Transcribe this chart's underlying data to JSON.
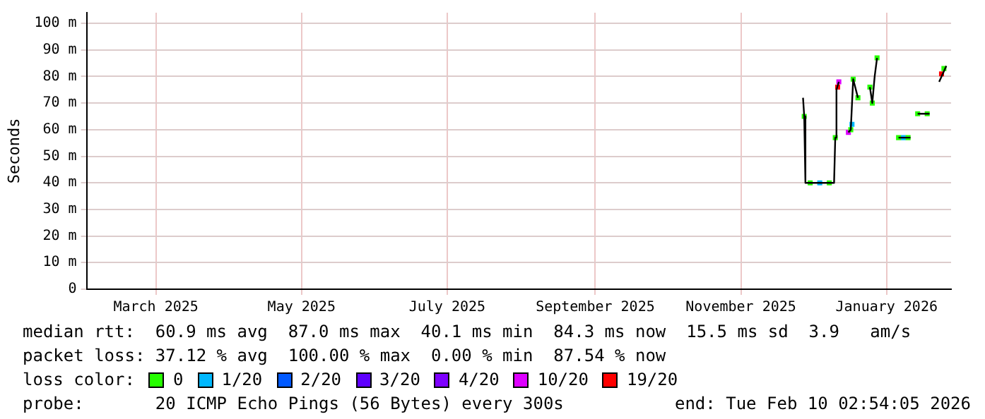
{
  "chart_data": {
    "type": "line",
    "ylabel": "Seconds",
    "legend_title": "loss color:",
    "xlim": [
      "2025-02-14",
      "2026-02-11"
    ],
    "xticks": [
      {
        "value": "2025-03-15",
        "label": "March 2025"
      },
      {
        "value": "2025-05-15",
        "label": "May 2025"
      },
      {
        "value": "2025-07-15",
        "label": "July 2025"
      },
      {
        "value": "2025-09-15",
        "label": "September 2025"
      },
      {
        "value": "2025-11-15",
        "label": "November 2025"
      },
      {
        "value": "2026-01-15",
        "label": "January 2026"
      }
    ],
    "ylim": [
      0,
      104
    ],
    "yticks": [
      0,
      {
        "value": 10,
        "label": "10 m"
      },
      {
        "value": 20,
        "label": "20 m"
      },
      {
        "value": 30,
        "label": "30 m"
      },
      {
        "value": 40,
        "label": "40 m"
      },
      {
        "value": 50,
        "label": "50 m"
      },
      {
        "value": 60,
        "label": "60 m"
      },
      {
        "value": 70,
        "label": "70 m"
      },
      {
        "value": 80,
        "label": "80 m"
      },
      {
        "value": 90,
        "label": "90 m"
      },
      {
        "value": 100,
        "label": "100 m"
      }
    ],
    "grid": true,
    "legend": "bottom",
    "marker": "square",
    "line_style": "solid",
    "series": [
      {
        "color": "#000000",
        "marker": "none",
        "x": [
          "2025-12-11T00:00",
          "2025-12-11T12:00",
          "2025-12-12",
          "2025-12-24",
          "2025-12-24T12:00",
          "2025-12-25",
          "2025-12-26",
          "2025-12-28",
          "2025-12-30",
          "2025-12-31",
          "2026-01-01",
          "2026-01-03",
          "2026-01-05",
          "2026-01-08",
          "2026-01-09",
          "2026-01-10",
          "2026-01-11",
          "2026-01-15",
          "2026-01-20",
          "2026-01-25",
          "2026-01-26",
          "2026-01-28",
          "2026-02-02",
          "2026-02-04",
          "2026-02-06",
          "2026-02-09"
        ],
        "values": [
          72,
          65,
          40,
          40,
          57,
          75,
          78,
          null,
          59,
          60,
          79,
          72,
          null,
          76,
          70,
          80,
          87,
          null,
          57,
          57,
          null,
          66,
          66,
          null,
          78,
          84
        ]
      },
      {
        "type": "scatter",
        "name": "0",
        "color": "#26ff00",
        "x": [
          "2025-12-11T12:00",
          "2025-12-14",
          "2025-12-22",
          "2025-12-24T12:00",
          "2025-12-31",
          "2026-01-01",
          "2026-01-03",
          "2026-01-08",
          "2026-01-09",
          "2026-01-11",
          "2026-01-20",
          "2026-01-24",
          "2026-01-28",
          "2026-02-01",
          "2026-02-08"
        ],
        "values": [
          65,
          40,
          40,
          57,
          60,
          79,
          72,
          76,
          70,
          87,
          57,
          57,
          66,
          66,
          83
        ]
      },
      {
        "type": "scatter",
        "name": "1/20",
        "color": "#00b8ff",
        "x": [
          "2025-12-18",
          "2025-12-31T12:00",
          "2026-01-22"
        ],
        "values": [
          40,
          62,
          57
        ]
      },
      {
        "type": "scatter",
        "name": "2/20",
        "color": "#0059ff"
      },
      {
        "type": "scatter",
        "name": "3/20",
        "color": "#5e00ff"
      },
      {
        "type": "scatter",
        "name": "4/20",
        "color": "#7e00ff"
      },
      {
        "type": "scatter",
        "name": "10/20",
        "color": "#dd00ff",
        "x": [
          "2025-12-26",
          "2025-12-30"
        ],
        "values": [
          78,
          59
        ]
      },
      {
        "type": "scatter",
        "name": "19/20",
        "color": "#ff0000",
        "x": [
          "2025-12-25T12:00",
          "2026-02-07"
        ],
        "values": [
          76,
          81
        ]
      }
    ],
    "annotations": [
      "median rtt:  60.9 ms avg  87.0 ms max  40.1 ms min  84.3 ms now  15.5 ms sd  3.9   am/s",
      "packet loss: 37.12 % avg  100.00 % max  0.00 % min  87.54 % now",
      "probe:       20 ICMP Echo Pings (56 Bytes) every 300s",
      "end: Tue Feb 10 02:54:05 2026"
    ]
  }
}
